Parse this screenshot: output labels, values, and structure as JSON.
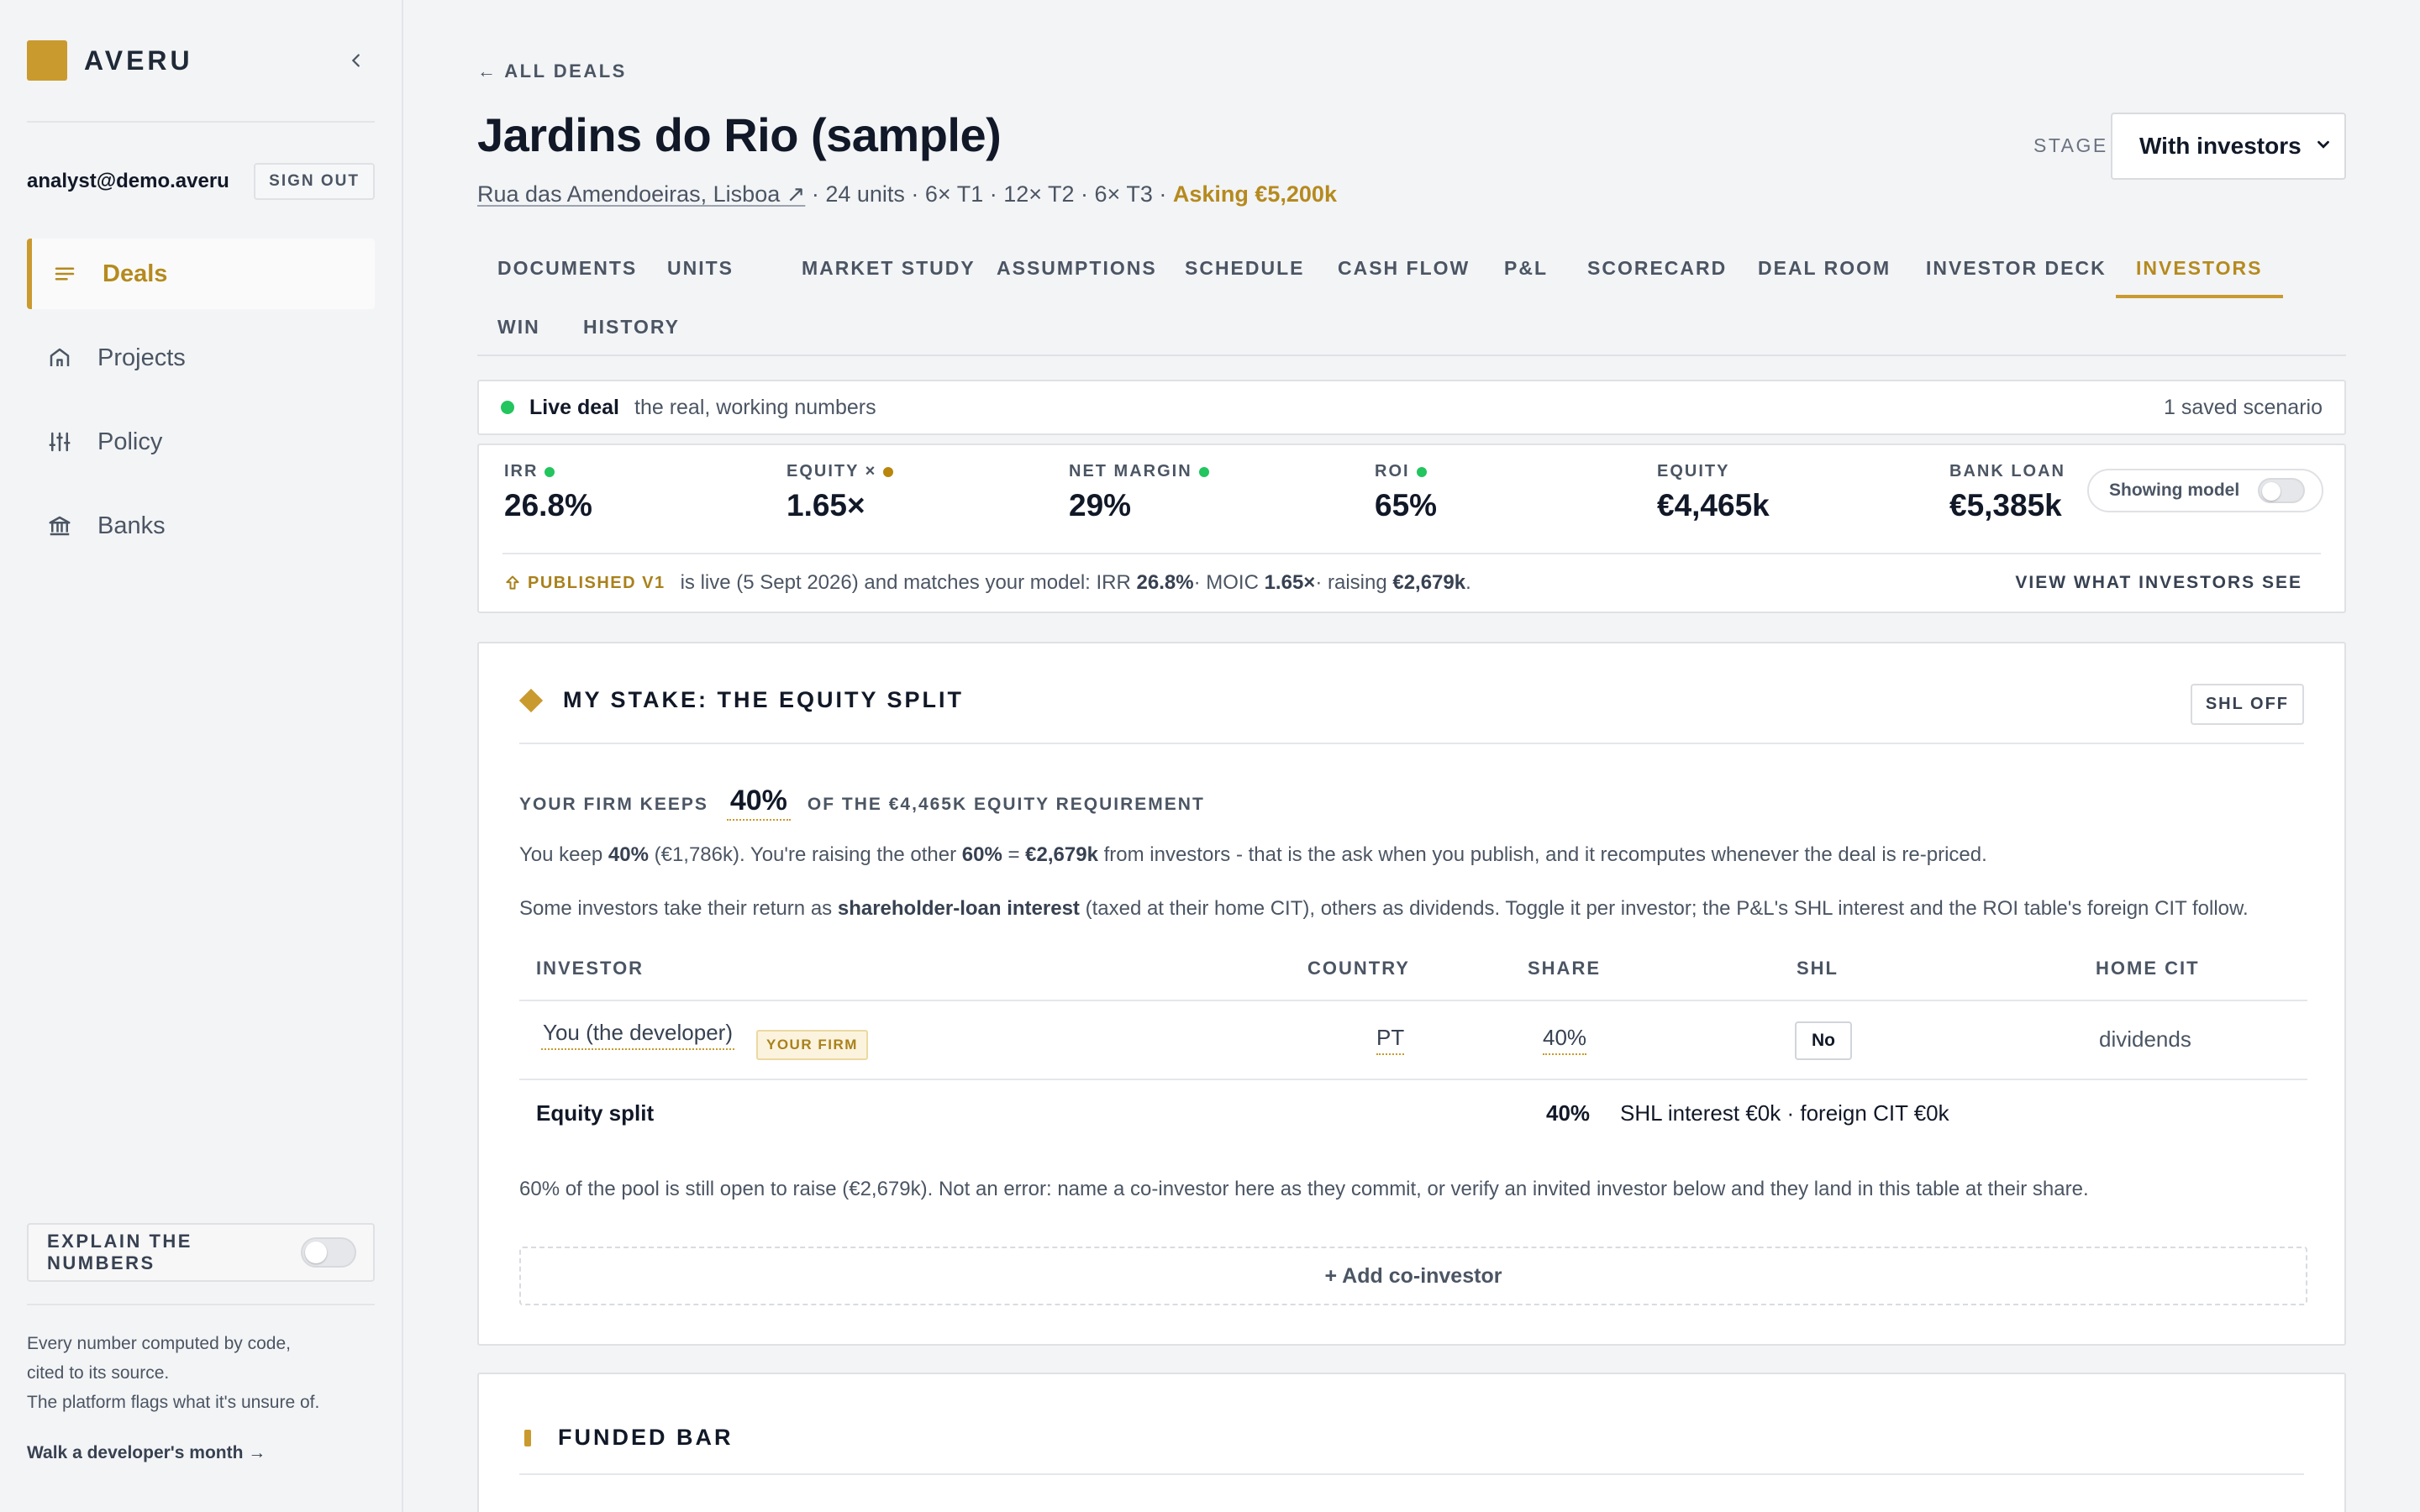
{
  "app": {
    "brand": "AVERU"
  },
  "sidebar": {
    "user_email": "analyst@demo.averu",
    "sign_out": "SIGN OUT",
    "items": [
      {
        "label": "Deals",
        "icon": "list-icon",
        "active": true
      },
      {
        "label": "Projects",
        "icon": "home-icon",
        "active": false
      },
      {
        "label": "Policy",
        "icon": "sliders-icon",
        "active": false
      },
      {
        "label": "Banks",
        "icon": "bank-icon",
        "active": false
      }
    ],
    "explain_label": "EXPLAIN THE NUMBERS",
    "footer_line1": "Every number computed by code,",
    "footer_line2": "cited to its source.",
    "footer_line3": "The platform flags what it's unsure of.",
    "walk_link": "Walk a developer's month →"
  },
  "deal": {
    "back_link": "← ALL DEALS",
    "title": "Jardins do Rio (sample)",
    "address": "Rua das Amendoeiras, Lisboa ↗",
    "meta": " · 24 units · 6× T1 · 12× T2 · 6× T3 · ",
    "asking": "Asking €5,200k",
    "stage_label": "STAGE",
    "stage_value": "With investors"
  },
  "tabs": [
    "DOCUMENTS",
    "UNITS",
    "MARKET STUDY",
    "ASSUMPTIONS",
    "SCHEDULE",
    "CASH FLOW",
    "P&L",
    "SCORECARD",
    "DEAL ROOM",
    "INVESTOR DECK",
    "INVESTORS",
    "WIN",
    "HISTORY"
  ],
  "active_tab": "INVESTORS",
  "live": {
    "title": "Live deal",
    "subtitle": "the real, working numbers",
    "scenarios": "1 saved scenario"
  },
  "kpis": [
    {
      "label": "IRR",
      "value": "26.8%",
      "dot": "#22c55e"
    },
    {
      "label": "EQUITY ×",
      "value": "1.65×",
      "dot": "#b8860b"
    },
    {
      "label": "NET MARGIN",
      "value": "29%",
      "dot": "#22c55e"
    },
    {
      "label": "ROI",
      "value": "65%",
      "dot": "#22c55e"
    },
    {
      "label": "EQUITY",
      "value": "€4,465k"
    },
    {
      "label": "BANK LOAN",
      "value": "€5,385k"
    }
  ],
  "showing_model": "Showing model",
  "published": {
    "tag": "PUBLISHED V1",
    "text1": "is live (5 Sept 2026) and matches your model: IRR ",
    "irr": "26.8%",
    "text2": " · MOIC ",
    "moic": "1.65×",
    "text3": " · raising ",
    "raising": "€2,679k",
    "text4": ".",
    "view_link": "VIEW WHAT INVESTORS SEE"
  },
  "stake": {
    "title": "MY STAKE: THE EQUITY SPLIT",
    "shl_toggle": "SHL OFF",
    "keeps_prefix": "YOUR FIRM KEEPS",
    "keeps_value": "40%",
    "keeps_suffix": "OF THE €4,465K EQUITY REQUIREMENT",
    "p1_a": "You keep ",
    "p1_b": "40%",
    "p1_c": " (€1,786k). You're raising the other ",
    "p1_d": "60%",
    "p1_e": " = ",
    "p1_f": "€2,679k",
    "p1_g": " from investors - that is the ask when you publish, and it recomputes whenever the deal is re-priced.",
    "p2_a": "Some investors take their return as ",
    "p2_b": "shareholder-loan interest",
    "p2_c": " (taxed at their home CIT), others as dividends. Toggle it per investor; the P&L's SHL interest and the ROI table's foreign CIT follow.",
    "table": {
      "headers": {
        "investor": "INVESTOR",
        "country": "COUNTRY",
        "share": "SHARE",
        "shl": "SHL",
        "home_cit": "HOME CIT"
      },
      "rows": [
        {
          "investor": "You (the developer)",
          "badge": "YOUR FIRM",
          "country": "PT",
          "share": "40%",
          "shl": "No",
          "home_cit": "dividends"
        }
      ],
      "total": {
        "label": "Equity split",
        "share": "40%",
        "detail": "SHL interest €0k · foreign CIT €0k"
      }
    },
    "open_note": "60% of the pool is still open to raise (€2,679k). Not an error: name a co-investor here as they commit, or verify an invited investor below and they land in this table at their share.",
    "add_button": "+ Add co-investor"
  },
  "funded": {
    "title": "FUNDED BAR"
  }
}
